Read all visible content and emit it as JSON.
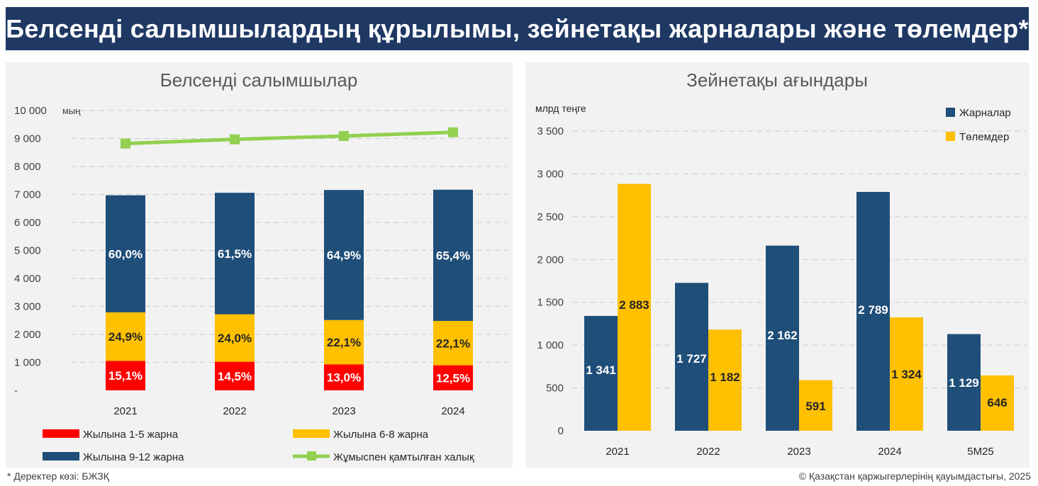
{
  "header": {
    "title": "Белсенді салымшылардың құрылымы, зейнетақы жарналары және төлемдер*"
  },
  "colors": {
    "header_bg": "#1f3864",
    "navy": "#1f4e79",
    "yellow": "#ffc000",
    "red": "#ff0000",
    "green": "#92d050",
    "panel_bg": "#f2f2f2"
  },
  "chart_data": [
    {
      "type": "bar",
      "stacked": true,
      "title": "Белсенді салымшылар",
      "unit_label": "мың",
      "ylim": [
        0,
        10000
      ],
      "y_ticks": [
        "-",
        "1 000",
        "2 000",
        "3 000",
        "4 000",
        "5 000",
        "6 000",
        "7 000",
        "8 000",
        "9 000",
        "10 000"
      ],
      "categories": [
        "2021",
        "2022",
        "2023",
        "2024"
      ],
      "totals": [
        6970,
        7060,
        7160,
        7170
      ],
      "series": [
        {
          "name": "Жылына 1-5 жарна",
          "color": "#ff0000",
          "shares": [
            15.1,
            14.5,
            13.0,
            12.5
          ],
          "labels": [
            "15,1%",
            "14,5%",
            "13,0%",
            "12,5%"
          ]
        },
        {
          "name": "Жылына 6-8 жарна",
          "color": "#ffc000",
          "shares": [
            24.9,
            24.0,
            22.1,
            22.1
          ],
          "labels": [
            "24,9%",
            "24,0%",
            "22,1%",
            "22,1%"
          ]
        },
        {
          "name": "Жылына 9-12 жарна",
          "color": "#1f4e79",
          "shares": [
            60.0,
            61.5,
            64.9,
            65.4
          ],
          "labels": [
            "60,0%",
            "61,5%",
            "64,9%",
            "65,4%"
          ]
        }
      ],
      "line": {
        "name": "Жұмыспен қамтылған халық",
        "color": "#92d050",
        "values": [
          8820,
          8970,
          9090,
          9220
        ]
      },
      "grid": true,
      "legend_position": "bottom"
    },
    {
      "type": "bar",
      "title": "Зейнетақы ағындары",
      "unit_label": "млрд теңге",
      "ylim": [
        0,
        3500
      ],
      "y_ticks": [
        "0",
        "500",
        "1 000",
        "1 500",
        "2 000",
        "2 500",
        "3 000",
        "3 500"
      ],
      "categories": [
        "2021",
        "2022",
        "2023",
        "2024",
        "5М25"
      ],
      "series": [
        {
          "name": "Жарналар",
          "color": "#1f4e79",
          "values": [
            1341,
            1727,
            2162,
            2789,
            1129
          ],
          "labels": [
            "1 341",
            "1 727",
            "2 162",
            "2 789",
            "1 129"
          ]
        },
        {
          "name": "Төлемдер",
          "color": "#ffc000",
          "values": [
            2883,
            1182,
            591,
            1324,
            646
          ],
          "labels": [
            "2 883",
            "1 182",
            "591",
            "1 324",
            "646"
          ]
        }
      ],
      "grid": true,
      "legend_position": "top-right"
    }
  ],
  "footer": {
    "source": "* Деректер көзі: БЖЗҚ",
    "copyright": "© Қазақстан қаржыгерлерінің қауымдастығы, 2025"
  }
}
